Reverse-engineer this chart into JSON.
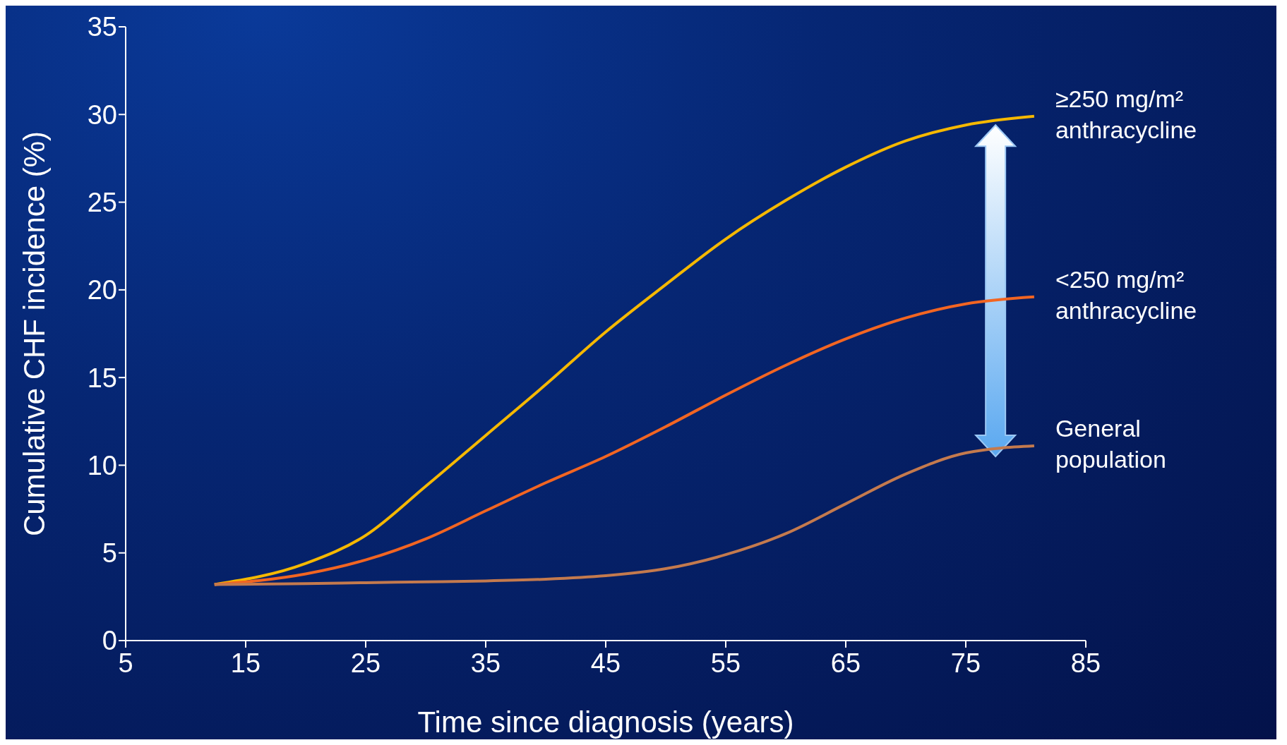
{
  "chart_data": {
    "type": "line",
    "xlabel": "Time since diagnosis (years)",
    "ylabel": "Cumulative CHF incidence (%)",
    "xlim": [
      5,
      85
    ],
    "xticks": [
      5,
      15,
      25,
      35,
      45,
      55,
      65,
      75,
      85
    ],
    "ylim": [
      0,
      35
    ],
    "yticks": [
      0,
      5,
      10,
      15,
      20,
      25,
      30,
      35
    ],
    "grid": false,
    "legend": false,
    "marker": "none",
    "line_style": "solid",
    "x": [
      12.4,
      20,
      25,
      30,
      35,
      40,
      45,
      50,
      55,
      60,
      65,
      70,
      75,
      80.7
    ],
    "series": [
      {
        "name": "≥250 mg/m² anthracycline",
        "color": "#f5b800",
        "values": [
          3.2,
          4.4,
          6.0,
          8.8,
          11.7,
          14.6,
          17.6,
          20.3,
          22.9,
          25.1,
          27.0,
          28.5,
          29.4,
          29.9
        ]
      },
      {
        "name": "<250 mg/m² anthracycline",
        "color": "#f26522",
        "values": [
          3.2,
          3.8,
          4.6,
          5.8,
          7.4,
          9.0,
          10.5,
          12.2,
          14.0,
          15.7,
          17.2,
          18.4,
          19.2,
          19.6
        ]
      },
      {
        "name": "General population",
        "color": "#c47a4e",
        "values": [
          3.2,
          3.25,
          3.3,
          3.35,
          3.4,
          3.5,
          3.7,
          4.1,
          4.9,
          6.1,
          7.8,
          9.5,
          10.7,
          11.1
        ]
      }
    ]
  }
}
